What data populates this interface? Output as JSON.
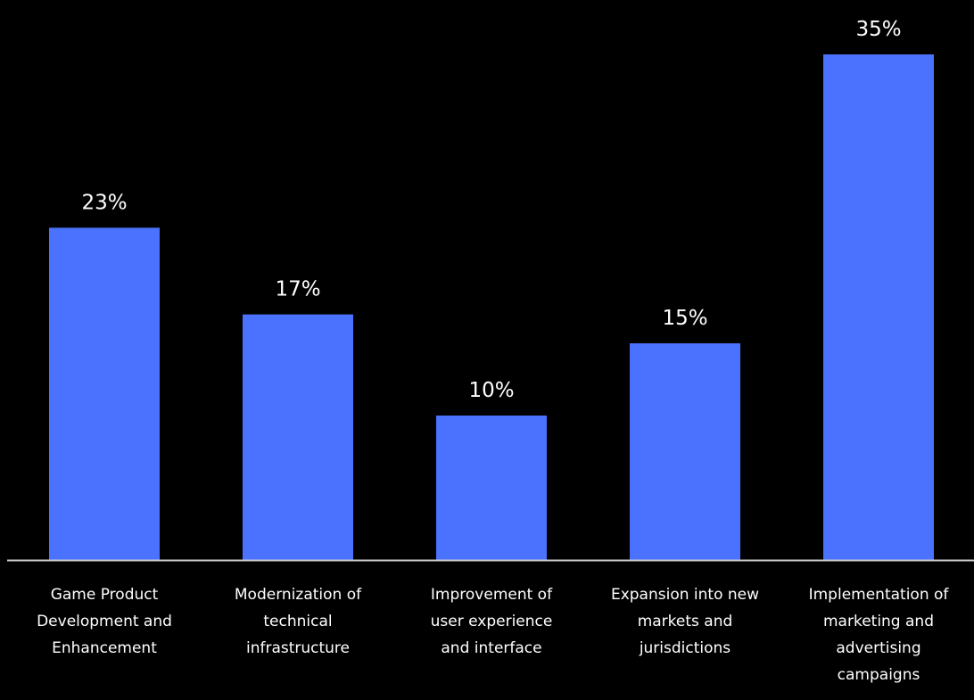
{
  "chart_data": {
    "type": "bar",
    "categories": [
      [
        "Game Product",
        "Development and",
        "Enhancement"
      ],
      [
        "Modernization of",
        "technical",
        "infrastructure"
      ],
      [
        "Improvement of",
        "user experience",
        "and interface"
      ],
      [
        "Expansion into new",
        "markets and",
        "jurisdictions"
      ],
      [
        "Implementation of",
        "marketing and",
        "advertising",
        "campaigns"
      ]
    ],
    "values": [
      23,
      17,
      10,
      15,
      35
    ],
    "value_labels": [
      "23%",
      "17%",
      "10%",
      "15%",
      "35%"
    ],
    "unit": "%",
    "ylim": [
      0,
      35
    ],
    "grid": false,
    "bar_color": "#4a72ff",
    "background_color": "#000000",
    "text_color": "#ffffff",
    "axis_color": "#cccccc"
  }
}
